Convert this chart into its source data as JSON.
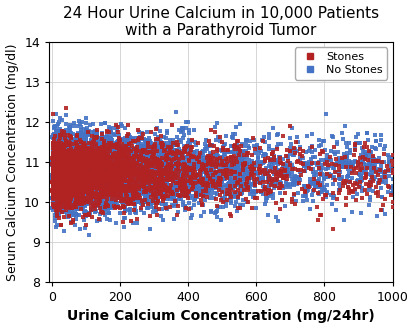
{
  "title": "24 Hour Urine Calcium in 10,000 Patients\nwith a Parathyroid Tumor",
  "xlabel": "Urine Calcium Concentration (mg/24hr)",
  "ylabel": "Serum Calcium Concentration (mg/dl)",
  "xlim": [
    -10,
    1000
  ],
  "ylim": [
    8,
    14
  ],
  "xticks": [
    0,
    200,
    400,
    600,
    800,
    1000
  ],
  "yticks": [
    8,
    9,
    10,
    11,
    12,
    13,
    14
  ],
  "stones_color": "#B22222",
  "no_stones_color": "#4472C4",
  "marker_size": 9,
  "n_stones": 3000,
  "n_no_stones": 7000,
  "seed": 42,
  "background_color": "#ffffff",
  "legend_stones_label": "Stones",
  "legend_no_stones_label": "No Stones",
  "title_fontsize": 11,
  "label_fontsize": 10
}
